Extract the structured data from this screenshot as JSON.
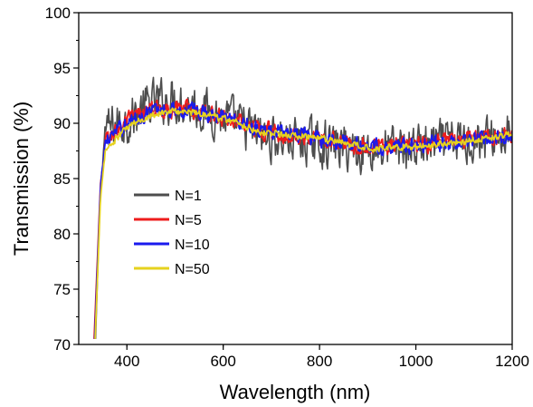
{
  "chart_data": {
    "type": "line",
    "xlabel": "Wavelength (nm)",
    "ylabel": "Transmission (%)",
    "xlim": [
      300,
      1200
    ],
    "ylim": [
      70,
      100
    ],
    "x_ticks": [
      400,
      600,
      800,
      1000,
      1200
    ],
    "y_ticks": [
      70,
      75,
      80,
      85,
      90,
      95,
      100
    ],
    "grid": false,
    "legend_position": "lower-left inside plot",
    "series": [
      {
        "name": "N=1",
        "color": "#4d4d4d",
        "noise": 2.8,
        "envelope": [
          [
            335,
            70.5
          ],
          [
            345,
            84
          ],
          [
            355,
            89.5
          ],
          [
            400,
            90.2
          ],
          [
            450,
            91.8
          ],
          [
            500,
            92.2
          ],
          [
            560,
            91.2
          ],
          [
            620,
            90.2
          ],
          [
            680,
            88.8
          ],
          [
            800,
            88.2
          ],
          [
            900,
            87.6
          ],
          [
            1000,
            87.9
          ],
          [
            1100,
            88.4
          ],
          [
            1200,
            88.9
          ]
        ]
      },
      {
        "name": "N=5",
        "color": "#ee1c1c",
        "noise": 1.1,
        "envelope": [
          [
            332,
            70.5
          ],
          [
            345,
            84
          ],
          [
            355,
            88.5
          ],
          [
            400,
            90.2
          ],
          [
            450,
            91.2
          ],
          [
            500,
            91.4
          ],
          [
            560,
            91.0
          ],
          [
            620,
            90.4
          ],
          [
            680,
            89.4
          ],
          [
            800,
            88.6
          ],
          [
            900,
            87.9
          ],
          [
            1000,
            88.0
          ],
          [
            1100,
            88.4
          ],
          [
            1200,
            88.9
          ]
        ]
      },
      {
        "name": "N=10",
        "color": "#1a1aee",
        "noise": 1.0,
        "envelope": [
          [
            333,
            70.5
          ],
          [
            345,
            84
          ],
          [
            355,
            88.3
          ],
          [
            400,
            90.0
          ],
          [
            450,
            91.1
          ],
          [
            500,
            91.3
          ],
          [
            560,
            91.0
          ],
          [
            620,
            90.4
          ],
          [
            680,
            89.4
          ],
          [
            800,
            88.6
          ],
          [
            900,
            87.9
          ],
          [
            1000,
            88.0
          ],
          [
            1100,
            88.4
          ],
          [
            1200,
            88.9
          ]
        ]
      },
      {
        "name": "N=50",
        "color": "#e6d21e",
        "noise": 0.45,
        "envelope": [
          [
            334,
            70.5
          ],
          [
            345,
            83
          ],
          [
            355,
            87.5
          ],
          [
            400,
            89.6
          ],
          [
            450,
            90.8
          ],
          [
            500,
            91.1
          ],
          [
            560,
            90.9
          ],
          [
            620,
            90.2
          ],
          [
            680,
            89.2
          ],
          [
            800,
            88.6
          ],
          [
            900,
            87.8
          ],
          [
            1000,
            87.9
          ],
          [
            1100,
            88.4
          ],
          [
            1200,
            89.0
          ]
        ]
      }
    ]
  }
}
